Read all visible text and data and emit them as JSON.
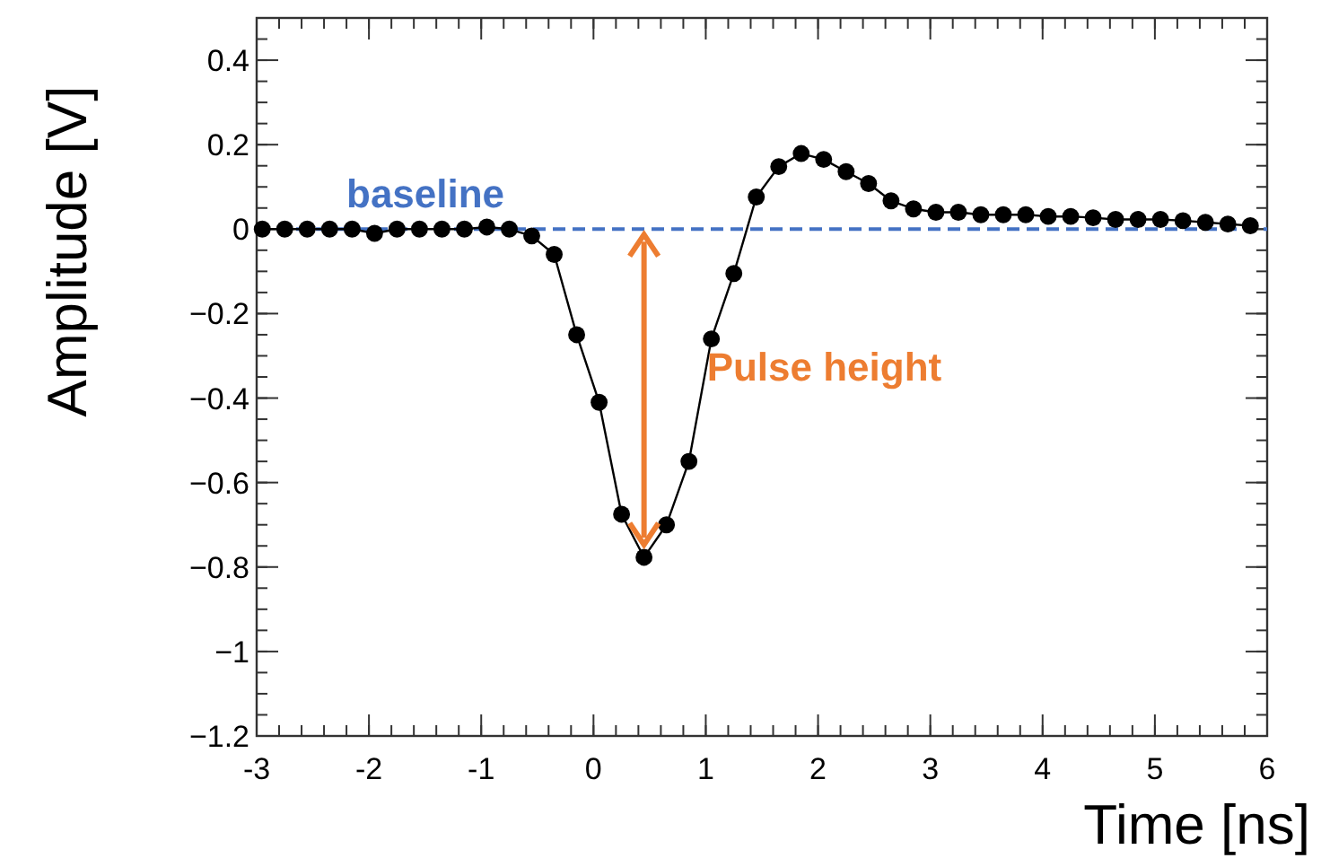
{
  "chart_data": {
    "type": "line",
    "xlabel": "Time [ns]",
    "ylabel": "Amplitude [V]",
    "x": [
      -2.95,
      -2.75,
      -2.55,
      -2.35,
      -2.15,
      -1.95,
      -1.75,
      -1.55,
      -1.35,
      -1.15,
      -0.95,
      -0.75,
      -0.55,
      -0.35,
      -0.15,
      0.05,
      0.25,
      0.45,
      0.65,
      0.85,
      1.05,
      1.25,
      1.45,
      1.65,
      1.85,
      2.05,
      2.25,
      2.45,
      2.65,
      2.85,
      3.05,
      3.25,
      3.45,
      3.65,
      3.85,
      4.05,
      4.25,
      4.45,
      4.65,
      4.85,
      5.05,
      5.25,
      5.45,
      5.65,
      5.85
    ],
    "series": [
      {
        "color": "#000000",
        "values": [
          0,
          0,
          0,
          0,
          0,
          -0.01,
          0,
          0,
          0,
          0,
          0.005,
          0,
          -0.016,
          -0.06,
          -0.25,
          -0.41,
          -0.675,
          -0.777,
          -0.7,
          -0.55,
          -0.26,
          -0.105,
          0.076,
          0.148,
          0.179,
          0.165,
          0.136,
          0.108,
          0.067,
          0.048,
          0.04,
          0.04,
          0.034,
          0.034,
          0.034,
          0.03,
          0.03,
          0.027,
          0.023,
          0.023,
          0.023,
          0.02,
          0.016,
          0.012,
          0.008
        ]
      }
    ],
    "marker": "circle",
    "line_style": "solid",
    "grid": false,
    "xlim": [
      -3,
      6
    ],
    "xticks": [
      -3,
      -2,
      -1,
      0,
      1,
      2,
      3,
      4,
      5,
      6
    ],
    "ylim": [
      -1.2,
      0.5
    ],
    "yticks": [
      {
        "value": -1.2,
        "label": "−1.2"
      },
      {
        "value": -1,
        "label": "−1"
      },
      {
        "value": -0.8,
        "label": "−0.8"
      },
      {
        "value": -0.6,
        "label": "−0.6"
      },
      {
        "value": -0.4,
        "label": "−0.4"
      },
      {
        "value": -0.2,
        "label": "−0.2"
      },
      {
        "value": 0,
        "label": "0"
      },
      {
        "value": 0.2,
        "label": "0.2"
      },
      {
        "value": 0.4,
        "label": "0.4"
      }
    ],
    "ref_lines": [
      {
        "axis": "y",
        "value": 0,
        "label": "baseline",
        "color": "#4472c4",
        "line_style": "dashed"
      }
    ],
    "annotations": [
      "Pulse height"
    ]
  }
}
